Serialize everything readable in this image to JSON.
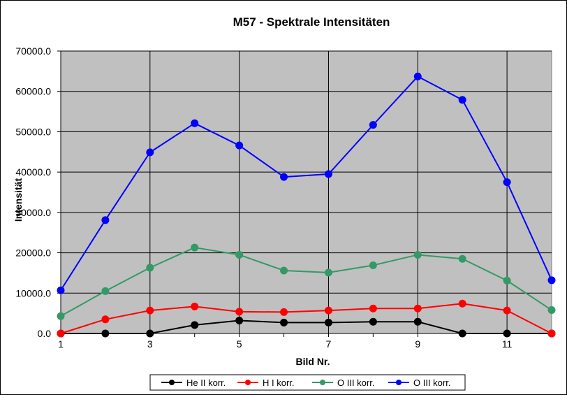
{
  "chart_data": {
    "type": "line",
    "title": "M57 - Spektrale Intensitäten",
    "xlabel": "Bild Nr.",
    "ylabel": "Intensität",
    "x": [
      1,
      2,
      3,
      4,
      5,
      6,
      7,
      8,
      9,
      10,
      11,
      12
    ],
    "xlim": [
      1,
      12
    ],
    "xticks": [
      "1",
      "3",
      "5",
      "7",
      "9",
      "11"
    ],
    "ylim": [
      0,
      70000
    ],
    "yticks": [
      "0.0",
      "10000.0",
      "20000.0",
      "30000.0",
      "40000.0",
      "50000.0",
      "60000.0",
      "70000.0"
    ],
    "grid": true,
    "legend_position": "bottom",
    "plot_background": "#C0C0C0",
    "series": [
      {
        "name": "He II korr.",
        "color": "#000000",
        "values": [
          0,
          0,
          0,
          2100,
          3200,
          2700,
          2700,
          2900,
          2900,
          0,
          0,
          0
        ]
      },
      {
        "name": "H I korr.",
        "color": "#FF0000",
        "values": [
          0,
          3500,
          5700,
          6700,
          5400,
          5300,
          5700,
          6200,
          6200,
          7400,
          5700,
          0
        ]
      },
      {
        "name": "O III korr.",
        "color": "#339966",
        "values": [
          4300,
          10500,
          16300,
          21300,
          19500,
          15600,
          15100,
          16900,
          19500,
          18500,
          13100,
          5800
        ]
      },
      {
        "name": "O III korr.",
        "color": "#0000FF",
        "values": [
          10700,
          28100,
          44900,
          52100,
          46600,
          38800,
          39500,
          51700,
          63700,
          57900,
          37500,
          13200
        ]
      }
    ]
  }
}
